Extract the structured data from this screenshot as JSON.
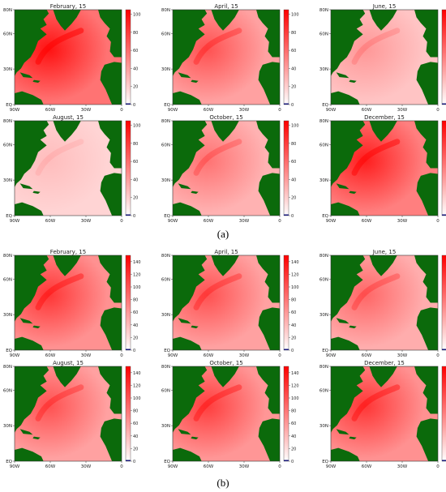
{
  "figures": [
    {
      "label": "(a)",
      "colorbar_ticks": [
        "0",
        "20",
        "40",
        "60",
        "80",
        "100"
      ],
      "colorbar_max": 105,
      "panels": [
        {
          "title": "February, 15",
          "intensity": 0.95
        },
        {
          "title": "April, 15",
          "intensity": 0.55
        },
        {
          "title": "June, 15",
          "intensity": 0.25
        },
        {
          "title": "August, 15",
          "intensity": 0.12
        },
        {
          "title": "October, 15",
          "intensity": 0.4
        },
        {
          "title": "December, 15",
          "intensity": 0.85
        }
      ]
    },
    {
      "label": "(b)",
      "colorbar_ticks": [
        "0",
        "20",
        "40",
        "60",
        "80",
        "100",
        "120",
        "140"
      ],
      "colorbar_max": 150,
      "panels": [
        {
          "title": "February, 15",
          "intensity": 0.7
        },
        {
          "title": "April, 15",
          "intensity": 0.55
        },
        {
          "title": "June, 15",
          "intensity": 0.45
        },
        {
          "title": "August, 15",
          "intensity": 0.55
        },
        {
          "title": "October, 15",
          "intensity": 0.65
        },
        {
          "title": "December, 15",
          "intensity": 0.7
        }
      ]
    }
  ],
  "axes": {
    "y_ticks": [
      "EQ",
      "30N",
      "60N",
      "80N"
    ],
    "x_ticks": [
      "90W",
      "60W",
      "30W",
      "0"
    ]
  },
  "colors": {
    "land": "#0b6a0b",
    "colormap_low": "#ffffff",
    "colormap_high": "#ff0000",
    "colorbar_min_marker": "#1a1a7a"
  }
}
